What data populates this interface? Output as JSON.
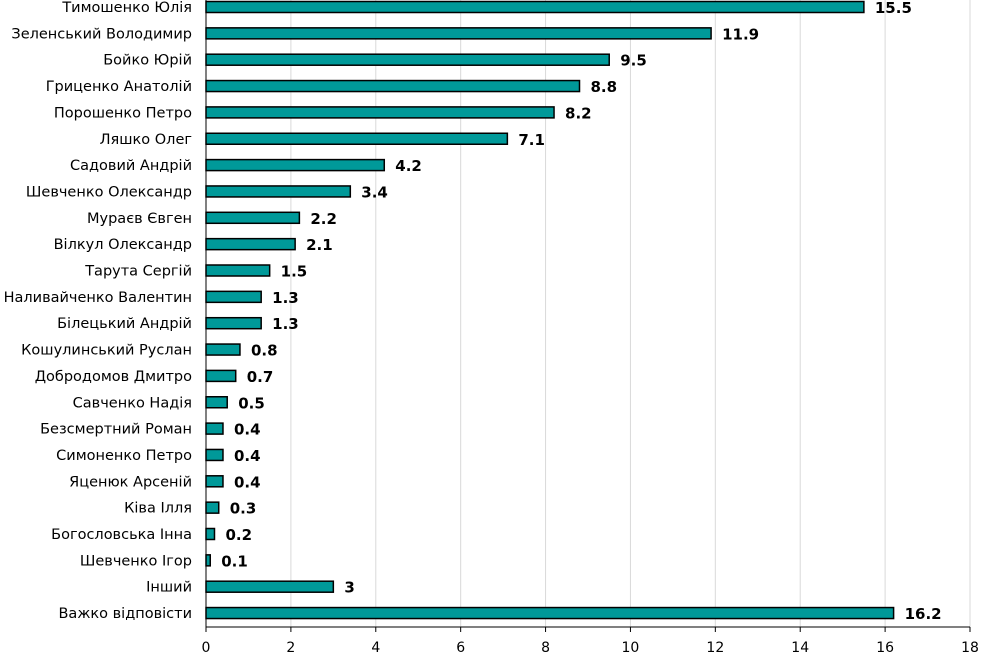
{
  "chart_data": {
    "type": "bar",
    "orientation": "horizontal",
    "title": "",
    "xlabel": "",
    "ylabel": "",
    "xlim": [
      0,
      18
    ],
    "x_ticks": [
      0,
      2,
      4,
      6,
      8,
      10,
      12,
      14,
      16,
      18
    ],
    "grid": "vertical",
    "bar_color": "#009999",
    "bar_edge_color": "#000000",
    "categories": [
      "Тимошенко Юлія",
      "Зеленський Володимир",
      "Бойко Юрій",
      "Гриценко Анатолій",
      "Порошенко Петро",
      "Ляшко Олег",
      "Садовий Андрій",
      "Шевченко Олександр",
      "Мураєв Євген",
      "Вілкул Олександр",
      "Тарута Сергій",
      "Наливайченко Валентин",
      "Білецький Андрій",
      "Кошулинський Руслан",
      "Добродомов Дмитро",
      "Савченко Надія",
      "Безсмертний Роман",
      "Симоненко Петро",
      "Яценюк Арсеній",
      "Ківа Ілля",
      "Богословська Інна",
      "Шевченко Ігор",
      "Інший",
      "Важко відповісти"
    ],
    "values": [
      15.5,
      11.9,
      9.5,
      8.8,
      8.2,
      7.1,
      4.2,
      3.4,
      2.2,
      2.1,
      1.5,
      1.3,
      1.3,
      0.8,
      0.7,
      0.5,
      0.4,
      0.4,
      0.4,
      0.3,
      0.2,
      0.1,
      3,
      16.2
    ],
    "value_labels": [
      "15.5",
      "11.9",
      "9.5",
      "8.8",
      "8.2",
      "7.1",
      "4.2",
      "3.4",
      "2.2",
      "2.1",
      "1.5",
      "1.3",
      "1.3",
      "0.8",
      "0.7",
      "0.5",
      "0.4",
      "0.4",
      "0.4",
      "0.3",
      "0.2",
      "0.1",
      "3",
      "16.2"
    ]
  }
}
